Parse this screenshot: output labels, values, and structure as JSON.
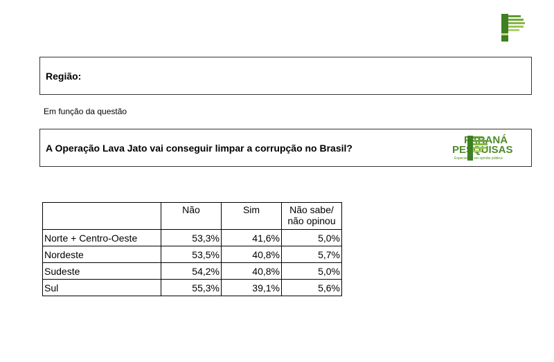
{
  "section": {
    "region_label": "Região:"
  },
  "context_note": "Em função da questão",
  "question": "A Operação Lava Jato vai conseguir limpar a corrupção no Brasil?",
  "brand": {
    "line1": "PARANÁ",
    "line2": "PESQUISAS",
    "tagline": "Especialista em opinião pública",
    "color": "#4e8a2a",
    "icon": "parana-pesquisas-logo-icon"
  },
  "table": {
    "headers": [
      "",
      "Não",
      "Sim",
      "Não sabe/ não opinou"
    ],
    "header_lines": {
      "nao_sabe_1": "Não sabe/",
      "nao_sabe_2": "não opinou"
    },
    "rows": [
      {
        "label": "Norte + Centro-Oeste",
        "nao": "53,3%",
        "sim": "41,6%",
        "ns": "5,0%"
      },
      {
        "label": "Nordeste",
        "nao": "53,5%",
        "sim": "40,8%",
        "ns": "5,7%"
      },
      {
        "label": "Sudeste",
        "nao": "54,2%",
        "sim": "40,8%",
        "ns": "5,0%"
      },
      {
        "label": "Sul",
        "nao": "55,3%",
        "sim": "39,1%",
        "ns": "5,6%"
      }
    ]
  }
}
